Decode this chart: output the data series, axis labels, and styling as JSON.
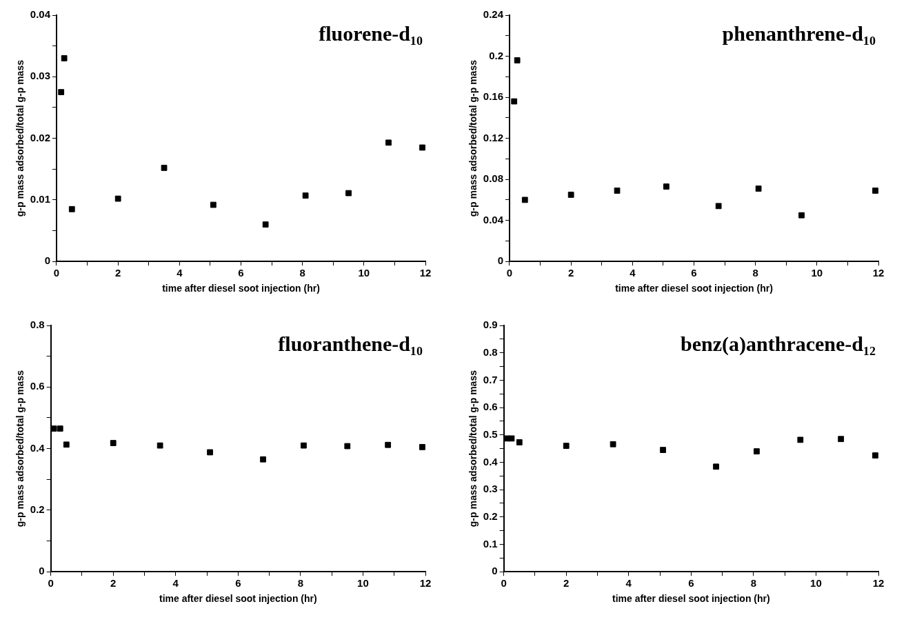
{
  "chart_data": [
    {
      "type": "scatter",
      "title": "fluorene-d₁₀",
      "xlabel": "time after diesel soot injection (hr)",
      "ylabel": "g-p mass adsorbed/total g-p mass",
      "marker": "square",
      "grid": false,
      "legend": false,
      "x": [
        0.15,
        0.25,
        0.5,
        2,
        3.5,
        5.1,
        6.8,
        8.1,
        9.5,
        10.8,
        11.9
      ],
      "series": [
        {
          "color": "#000000",
          "values": [
            0.0275,
            0.033,
            0.0085,
            0.0102,
            0.0152,
            0.0092,
            0.006,
            0.0107,
            0.0111,
            0.0193,
            0.0185
          ]
        }
      ],
      "xlim": [
        0,
        12
      ],
      "xticks": [
        0,
        {
          "value": 1,
          "label": null
        },
        2,
        {
          "value": 3,
          "label": null
        },
        4,
        {
          "value": 5,
          "label": null
        },
        6,
        {
          "value": 7,
          "label": null
        },
        8,
        {
          "value": 9,
          "label": null
        },
        10,
        {
          "value": 11,
          "label": null
        },
        12
      ],
      "ylim": [
        0,
        0.04
      ],
      "yticks": [
        0,
        {
          "value": 0.005,
          "label": null
        },
        0.01,
        {
          "value": 0.015,
          "label": null
        },
        0.02,
        {
          "value": 0.025,
          "label": null
        },
        0.03,
        {
          "value": 0.035,
          "label": null
        },
        0.04
      ]
    },
    {
      "type": "scatter",
      "title": "phenanthrene-d₁₀",
      "xlabel": "time after diesel soot injection (hr)",
      "ylabel": "g-p mass adsorbed/total g-p mass",
      "marker": "square",
      "grid": false,
      "legend": false,
      "x": [
        0.15,
        0.25,
        0.5,
        2,
        3.5,
        5.1,
        6.8,
        8.1,
        9.5,
        11.9
      ],
      "series": [
        {
          "color": "#000000",
          "values": [
            0.156,
            0.196,
            0.06,
            0.065,
            0.069,
            0.073,
            0.054,
            0.071,
            0.045,
            0.069
          ]
        }
      ],
      "xlim": [
        0,
        12
      ],
      "xticks": [
        0,
        {
          "value": 1,
          "label": null
        },
        2,
        {
          "value": 3,
          "label": null
        },
        4,
        {
          "value": 5,
          "label": null
        },
        6,
        {
          "value": 7,
          "label": null
        },
        8,
        {
          "value": 9,
          "label": null
        },
        10,
        {
          "value": 11,
          "label": null
        },
        12
      ],
      "ylim": [
        0,
        0.24
      ],
      "yticks": [
        0,
        {
          "value": 0.02,
          "label": null
        },
        0.04,
        {
          "value": 0.06,
          "label": null
        },
        0.08,
        {
          "value": 0.1,
          "label": null
        },
        0.12,
        {
          "value": 0.14,
          "label": null
        },
        0.16,
        {
          "value": 0.18,
          "label": null
        },
        0.2,
        {
          "value": 0.22,
          "label": null
        },
        0.24
      ]
    },
    {
      "type": "scatter",
      "title": "fluoranthene-d₁₀",
      "xlabel": "time after diesel soot injection (hr)",
      "ylabel": "g-p mass adsorbed/total g-p mass",
      "marker": "square",
      "grid": false,
      "legend": false,
      "x": [
        0.1,
        0.3,
        0.5,
        2,
        3.5,
        5.1,
        6.8,
        8.1,
        9.5,
        10.8,
        11.9
      ],
      "series": [
        {
          "color": "#000000",
          "values": [
            0.465,
            0.465,
            0.413,
            0.418,
            0.41,
            0.388,
            0.365,
            0.41,
            0.408,
            0.412,
            0.405
          ]
        }
      ],
      "xlim": [
        0,
        12
      ],
      "xticks": [
        0,
        {
          "value": 1,
          "label": null
        },
        2,
        {
          "value": 3,
          "label": null
        },
        4,
        {
          "value": 5,
          "label": null
        },
        6,
        {
          "value": 7,
          "label": null
        },
        8,
        {
          "value": 9,
          "label": null
        },
        10,
        {
          "value": 11,
          "label": null
        },
        12
      ],
      "ylim": [
        0,
        0.8
      ],
      "yticks": [
        0,
        {
          "value": 0.1,
          "label": null
        },
        0.2,
        {
          "value": 0.3,
          "label": null
        },
        0.4,
        {
          "value": 0.5,
          "label": null
        },
        0.6,
        {
          "value": 0.7,
          "label": null
        },
        0.8
      ]
    },
    {
      "type": "scatter",
      "title": "benz(a)anthracene-d₁₂",
      "xlabel": "time after diesel soot injection (hr)",
      "ylabel": "g-p mass adsorbed/total g-p mass",
      "marker": "square",
      "grid": false,
      "legend": false,
      "x": [
        0.1,
        0.25,
        0.5,
        2,
        3.5,
        5.1,
        6.8,
        8.1,
        9.5,
        10.8,
        11.9
      ],
      "series": [
        {
          "color": "#000000",
          "values": [
            0.487,
            0.487,
            0.473,
            0.46,
            0.466,
            0.445,
            0.384,
            0.44,
            0.482,
            0.485,
            0.425
          ]
        }
      ],
      "xlim": [
        0,
        12
      ],
      "xticks": [
        0,
        {
          "value": 1,
          "label": null
        },
        2,
        {
          "value": 3,
          "label": null
        },
        4,
        {
          "value": 5,
          "label": null
        },
        6,
        {
          "value": 7,
          "label": null
        },
        8,
        {
          "value": 9,
          "label": null
        },
        10,
        {
          "value": 11,
          "label": null
        },
        12
      ],
      "ylim": [
        0,
        0.9
      ],
      "yticks": [
        0,
        {
          "value": 0.05,
          "label": null
        },
        0.1,
        {
          "value": 0.15,
          "label": null
        },
        0.2,
        {
          "value": 0.25,
          "label": null
        },
        0.3,
        {
          "value": 0.35,
          "label": null
        },
        0.4,
        {
          "value": 0.45,
          "label": null
        },
        0.5,
        {
          "value": 0.55,
          "label": null
        },
        0.6,
        {
          "value": 0.65,
          "label": null
        },
        0.7,
        {
          "value": 0.75,
          "label": null
        },
        0.8,
        {
          "value": 0.85,
          "label": null
        },
        0.9
      ]
    }
  ]
}
